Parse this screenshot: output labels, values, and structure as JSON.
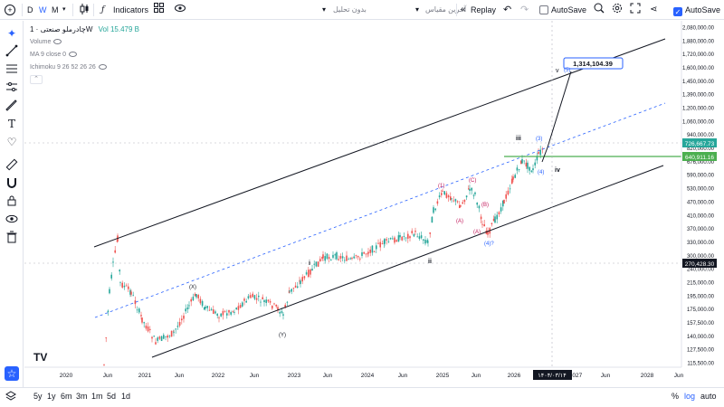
{
  "toolbar": {
    "menu_icon": "plus-circle-icon",
    "intervals": [
      "D",
      "W",
      "M"
    ],
    "chart_type_icon": "candles-icon",
    "indicators_label": "Indicators",
    "layout_icon": "grid-icon",
    "alert_icon": "eye-icon",
    "save_menu_label": "بدون تحلیل",
    "last_change_label": "آخرین مقیاس",
    "replay_label": "Replay",
    "undo_icon": "undo-icon",
    "redo_icon": "redo-icon",
    "autosave_label": "AutoSave",
    "right_autosave_label": "AutoSave"
  },
  "legend": {
    "title": "چادرملو صنعتی · 1W",
    "volume_value": "Vol 15.479 B",
    "volume_label": "Volume",
    "ma_label": "MA 9 close 0",
    "ichimoku_label": "Ichimoku 9 26 52 26 26",
    "collapse_icon": "chevron-up-icon"
  },
  "chart": {
    "price_axis": [
      "2,080,000.00",
      "1,880,000.00",
      "1,720,000.00",
      "1,600,000.00",
      "1,450,000.00",
      "1,390,000.00",
      "1,200,000.00",
      "1,060,000.00",
      "940,000.00",
      "820,000.00",
      "676,000.00",
      "590,000.00",
      "530,000.00",
      "470,000.00",
      "410,000.00",
      "370,000.00",
      "330,000.00",
      "300,000.00",
      "240,000.00",
      "215,000.00",
      "195,000.00",
      "175,000.00",
      "157,500.00",
      "140,000.00",
      "127,500.00",
      "115,500.00"
    ],
    "time_axis": [
      "2020",
      "Jun",
      "2021",
      "Jun",
      "2022",
      "Jun",
      "2023",
      "Jun",
      "2024",
      "Jun",
      "2025",
      "Jun",
      "2026",
      "2027",
      "Jun",
      "2028",
      "Jun"
    ],
    "price_tags": {
      "current": "726,667.73",
      "support": "640,911.16",
      "low": "270,428.30"
    },
    "date_tag": "۱۴۰۴/۰۳/۱۴",
    "target_label": "1,314,104.39",
    "wave_labels": [
      "v",
      "(5)",
      "iii",
      "(3)",
      "(4)",
      "iv",
      "(1)",
      "(C)",
      "(B)",
      "(A)",
      "(A)",
      "(4)?",
      "ii",
      "i",
      "(X)",
      "(Y)"
    ],
    "watermark": "TV",
    "colors": {
      "up": "#26a69a",
      "down": "#ef5350",
      "support_line": "#4caf50",
      "dashed_line": "#2962ff",
      "wave_label": "#c2185b",
      "wave_label_blue": "#2962ff"
    }
  },
  "bottombar": {
    "ranges": [
      "5y",
      "1y",
      "6m",
      "3m",
      "1m",
      "5d",
      "1d"
    ],
    "percent_label": "%",
    "log_label": "log",
    "auto_label": "auto",
    "layers_icon": "layers-icon"
  },
  "leftbar": {
    "tools": [
      "crosshair-icon",
      "trend-line-icon",
      "fib-icon",
      "pattern-icon",
      "brush-icon",
      "text-icon",
      "heart-icon",
      "ruler-icon",
      "magnet-icon",
      "lock-icon",
      "eye-icon",
      "trash-icon",
      "star-icon"
    ]
  }
}
